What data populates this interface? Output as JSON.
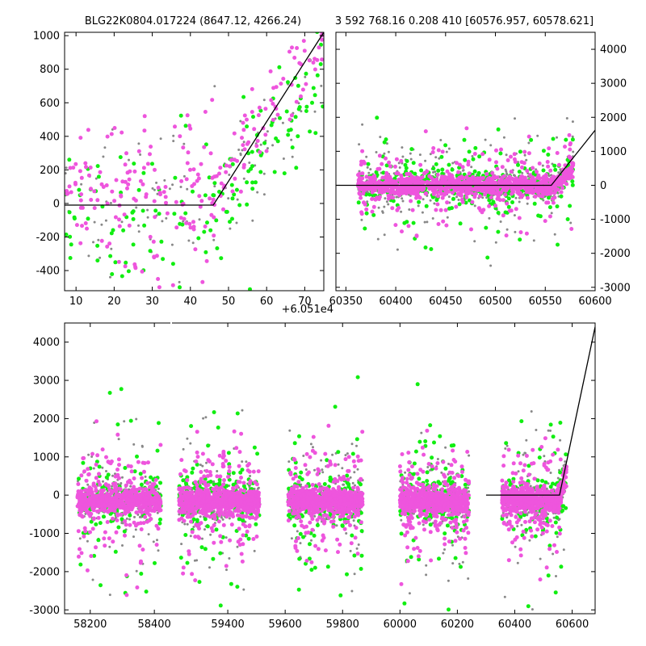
{
  "chart_data": [
    {
      "panel": "zoom-left",
      "type": "scatter",
      "title": "BLG22K0804.017224 (8647.12, 4266.24)",
      "x_offset_label": "+6.051e4",
      "xlim": [
        7,
        75
      ],
      "ylim": [
        -520,
        1020
      ],
      "xticks": [
        10,
        20,
        30,
        40,
        50,
        60,
        70
      ],
      "yticks": [
        -400,
        -200,
        0,
        200,
        400,
        600,
        800,
        1000
      ],
      "model": {
        "x": [
          7,
          46,
          75
        ],
        "y": [
          -10,
          -10,
          1020
        ]
      },
      "series": [
        {
          "color": "#ee55dd",
          "center_x": 45,
          "spread_x": 28,
          "baseline": 60,
          "noise": 220,
          "rise_start": 46,
          "slope": 30,
          "count": 240,
          "marker": 5
        },
        {
          "color": "#11ee11",
          "center_x": 42,
          "spread_x": 30,
          "baseline": -20,
          "noise": 260,
          "rise_start": 46,
          "slope": 24,
          "count": 150,
          "marker": 5
        },
        {
          "color": "#888888",
          "center_x": 42,
          "spread_x": 30,
          "baseline": 0,
          "noise": 260,
          "rise_start": 46,
          "slope": 22,
          "count": 110,
          "marker": 3
        }
      ]
    },
    {
      "panel": "zoom-right",
      "type": "scatter",
      "title": "3 592 768.16 0.208 410 [60576.957, 60578.621]",
      "xlim": [
        60340,
        60600
      ],
      "ylim": [
        -3100,
        4500
      ],
      "xticks": [
        60350,
        60400,
        60450,
        60500,
        60550,
        60600
      ],
      "yticks": [
        -3000,
        -2000,
        -1000,
        0,
        1000,
        2000,
        3000,
        4000
      ],
      "yaxis_side": "right",
      "model": {
        "x": [
          60340,
          60556,
          60600
        ],
        "y": [
          0,
          0,
          1620
        ]
      },
      "series": [
        {
          "color": "#888888",
          "x_range": [
            60362,
            60578
          ],
          "core_sd": 220,
          "tail_sd": 900,
          "count": 600,
          "marker": 3
        },
        {
          "color": "#11ee11",
          "x_range": [
            60362,
            60578
          ],
          "core_sd": 240,
          "tail_sd": 1000,
          "count": 420,
          "marker": 5
        },
        {
          "color": "#ee55dd",
          "x_range": [
            60362,
            60578
          ],
          "core_sd": 140,
          "tail_sd": 600,
          "count": 1100,
          "marker": 5
        }
      ]
    },
    {
      "panel": "full-lightcurve",
      "type": "scatter",
      "xlim": [
        58120,
        60680
      ],
      "ylim": [
        -3100,
        4500
      ],
      "xticks": [
        58200,
        58400,
        59400,
        59600,
        59800,
        60000,
        60200,
        60400,
        60600
      ],
      "yticks": [
        -3000,
        -2000,
        -1000,
        0,
        1000,
        2000,
        3000,
        4000
      ],
      "axis_breaks": [
        58450
      ],
      "model": {
        "x": [
          60300,
          60556,
          60680
        ],
        "y": [
          0,
          0,
          4400
        ]
      },
      "seasons": [
        {
          "x_range": [
            58160,
            58420
          ],
          "n_gray": 250,
          "n_green": 160,
          "n_magenta": 700
        },
        {
          "x_range": [
            59230,
            59510
          ],
          "n_gray": 300,
          "n_green": 220,
          "n_magenta": 800
        },
        {
          "x_range": [
            59610,
            59870
          ],
          "n_gray": 280,
          "n_green": 200,
          "n_magenta": 760
        },
        {
          "x_range": [
            60000,
            60240
          ],
          "n_gray": 260,
          "n_green": 200,
          "n_magenta": 740
        },
        {
          "x_range": [
            60355,
            60580
          ],
          "n_gray": 240,
          "n_green": 180,
          "n_magenta": 640
        }
      ],
      "series": [
        {
          "color": "#888888",
          "core_sd": 240,
          "tail_sd": 1000,
          "marker": 3
        },
        {
          "color": "#11ee11",
          "core_sd": 300,
          "tail_sd": 1100,
          "marker": 5
        },
        {
          "color": "#ee55dd",
          "core_sd": 150,
          "tail_sd": 700,
          "marker": 5
        }
      ]
    }
  ]
}
